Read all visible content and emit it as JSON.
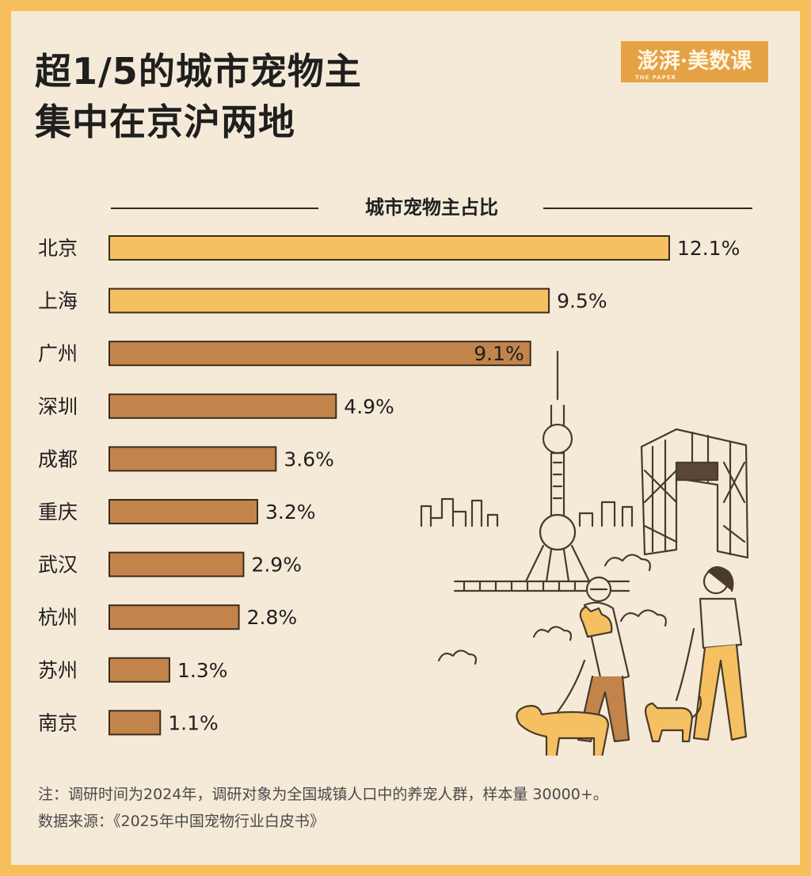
{
  "title_line1": "超1/5的城市宠物主",
  "title_line2": "集中在京沪两地",
  "logo": {
    "text": "澎湃·美数课",
    "sub": "THE PAPER"
  },
  "chart_data": {
    "type": "bar",
    "orientation": "horizontal",
    "title": "城市宠物主占比",
    "categories": [
      "北京",
      "上海",
      "广州",
      "深圳",
      "成都",
      "重庆",
      "武汉",
      "杭州",
      "苏州",
      "南京"
    ],
    "values": [
      12.1,
      9.5,
      9.1,
      4.9,
      3.6,
      3.2,
      2.9,
      2.8,
      1.3,
      1.1
    ],
    "value_labels": [
      "12.1%",
      "9.5%",
      "9.1%",
      "4.9%",
      "3.6%",
      "3.2%",
      "2.9%",
      "2.8%",
      "1.3%",
      "1.1%"
    ],
    "unit": "%",
    "highlight_count": 2,
    "colors": {
      "highlight": "#f5c061",
      "normal": "#c3844b",
      "outline": "#3a2c1e"
    },
    "inside_label_index": 2,
    "xlim": [
      0,
      12.1
    ],
    "grid": false,
    "legend": "none"
  },
  "note": "注：调研时间为2024年，调研对象为全国城镇人口中的养宠人群，样本量 30000+。",
  "source": "数据来源：《2025年中国宠物行业白皮书》"
}
